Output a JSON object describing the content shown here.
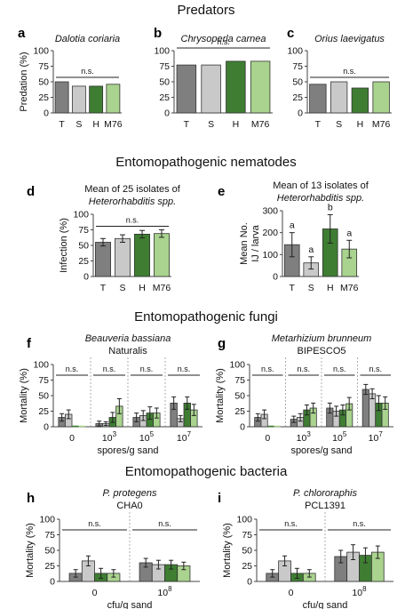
{
  "colors": {
    "T": "#7f7f7f",
    "S": "#c9c9c9",
    "H": "#3e7d32",
    "M76": "#a9d38e"
  },
  "sections": [
    "Predators",
    "Entomopathogenic nematodes",
    "Entomopathogenic fungi",
    "Entomopathogenic bacteria"
  ],
  "chart_data": [
    {
      "id": "a",
      "type": "bar",
      "title": "Dalotia coriaria",
      "title_italic": true,
      "title2": "",
      "ylabel": "Predation (%)",
      "ylim": [
        0,
        100
      ],
      "yticks": [
        0,
        25,
        50,
        75,
        100
      ],
      "categories": [
        "T",
        "S",
        "H",
        "M76"
      ],
      "values": [
        50,
        43,
        43,
        46
      ],
      "sig_label": "n.s."
    },
    {
      "id": "b",
      "type": "bar",
      "title": "Chrysoperla carnea",
      "title_italic": true,
      "title2": "",
      "ylabel": "",
      "ylim": [
        0,
        100
      ],
      "yticks": [
        0,
        25,
        50,
        75,
        100
      ],
      "categories": [
        "T",
        "S",
        "H",
        "M76"
      ],
      "values": [
        77,
        77,
        83,
        83
      ],
      "sig_label": "n.s."
    },
    {
      "id": "c",
      "type": "bar",
      "title": "Orius laevigatus",
      "title_italic": true,
      "title2": "",
      "ylabel": "",
      "ylim": [
        0,
        100
      ],
      "yticks": [
        0,
        25,
        50,
        75,
        100
      ],
      "categories": [
        "T",
        "S",
        "H",
        "M76"
      ],
      "values": [
        46,
        50,
        40,
        50
      ],
      "sig_label": "n.s."
    },
    {
      "id": "d",
      "type": "bar",
      "title": "Mean of 25 isolates of",
      "title2": "Heterorhabditis spp.",
      "title2_italic": true,
      "ylabel": "Infection (%)",
      "ylim": [
        0,
        100
      ],
      "yticks": [
        0,
        25,
        50,
        75,
        100
      ],
      "categories": [
        "T",
        "S",
        "H",
        "M76"
      ],
      "values": [
        55,
        61,
        68,
        69
      ],
      "errors": [
        6,
        6,
        6,
        6
      ],
      "sig_label": "n.s."
    },
    {
      "id": "e",
      "type": "bar",
      "title": "Mean of 13 isolates of",
      "title2": "Heterorhabditis spp.",
      "title2_italic": true,
      "ylabel": "Mean No.",
      "ylabel2": "IJ / larva",
      "ylim": [
        0,
        300
      ],
      "yticks": [
        0,
        100,
        200,
        300
      ],
      "categories": [
        "T",
        "S",
        "H",
        "M76"
      ],
      "values": [
        145,
        62,
        217,
        125
      ],
      "errors": [
        55,
        28,
        65,
        40
      ],
      "letters": [
        "a",
        "a",
        "b",
        "a"
      ]
    },
    {
      "id": "f",
      "type": "bar",
      "title": "Beauveria bassiana",
      "title_italic": true,
      "title2": "Naturalis",
      "ylabel": "Mortality (%)",
      "xlabel": "spores/g sand",
      "ylim": [
        0,
        100
      ],
      "yticks": [
        0,
        25,
        50,
        75,
        100
      ],
      "groups": [
        "0",
        "10^3",
        "10^5",
        "10^7"
      ],
      "tick_labels": [
        "0",
        "10",
        "10",
        "10"
      ],
      "tick_sups": [
        "",
        "3",
        "5",
        "7"
      ],
      "series": [
        {
          "name": "T",
          "values": [
            15,
            5,
            15,
            38
          ],
          "errors": [
            6,
            4,
            7,
            10
          ]
        },
        {
          "name": "S",
          "values": [
            20,
            5,
            18,
            13
          ],
          "errors": [
            7,
            3,
            8,
            5
          ]
        },
        {
          "name": "H",
          "values": [
            0,
            15,
            22,
            38
          ],
          "errors": [
            0,
            8,
            10,
            10
          ]
        },
        {
          "name": "M76",
          "values": [
            0,
            33,
            22,
            27
          ],
          "errors": [
            0,
            12,
            8,
            9
          ]
        }
      ],
      "sig_label": "n.s."
    },
    {
      "id": "g",
      "type": "bar",
      "title": "Metarhizium brunneum",
      "title_italic": true,
      "title2": "BIPESCO5",
      "ylabel": "Mortality (%)",
      "xlabel": "spores/g sand",
      "ylim": [
        0,
        100
      ],
      "yticks": [
        0,
        25,
        50,
        75,
        100
      ],
      "groups": [
        "0",
        "10^3",
        "10^5",
        "10^7"
      ],
      "tick_labels": [
        "0",
        "10",
        "10",
        "10"
      ],
      "tick_sups": [
        "",
        "3",
        "5",
        "7"
      ],
      "series": [
        {
          "name": "T",
          "values": [
            15,
            12,
            30,
            60
          ],
          "errors": [
            6,
            5,
            8,
            8
          ]
        },
        {
          "name": "S",
          "values": [
            20,
            15,
            25,
            53
          ],
          "errors": [
            7,
            6,
            8,
            8
          ]
        },
        {
          "name": "H",
          "values": [
            0,
            27,
            27,
            38
          ],
          "errors": [
            0,
            8,
            8,
            12
          ]
        },
        {
          "name": "M76",
          "values": [
            0,
            30,
            37,
            38
          ],
          "errors": [
            0,
            8,
            10,
            10
          ]
        }
      ],
      "sig_label": "n.s."
    },
    {
      "id": "h",
      "type": "bar",
      "title": "P. protegens",
      "title_italic": true,
      "title2": "CHA0",
      "ylabel": "Mortality (%)",
      "xlabel": "cfu/g sand",
      "ylim": [
        0,
        100
      ],
      "yticks": [
        0,
        25,
        50,
        75,
        100
      ],
      "groups": [
        "0",
        "10^8"
      ],
      "tick_labels": [
        "0",
        "10"
      ],
      "tick_sups": [
        "",
        "8"
      ],
      "series": [
        {
          "name": "T",
          "values": [
            13,
            30
          ],
          "errors": [
            6,
            7
          ]
        },
        {
          "name": "S",
          "values": [
            33,
            27
          ],
          "errors": [
            8,
            7
          ]
        },
        {
          "name": "H",
          "values": [
            13,
            27
          ],
          "errors": [
            8,
            7
          ]
        },
        {
          "name": "M76",
          "values": [
            13,
            25
          ],
          "errors": [
            6,
            6
          ]
        }
      ],
      "sig_label": "n.s."
    },
    {
      "id": "i",
      "type": "bar",
      "title": "P. chlororaphis",
      "title_italic": true,
      "title2": "PCL1391",
      "ylabel": "Mortality (%)",
      "xlabel": "cfu/g sand",
      "ylim": [
        0,
        100
      ],
      "yticks": [
        0,
        25,
        50,
        75,
        100
      ],
      "groups": [
        "0",
        "10^8"
      ],
      "tick_labels": [
        "0",
        "10"
      ],
      "tick_sups": [
        "",
        "8"
      ],
      "series": [
        {
          "name": "T",
          "values": [
            13,
            40
          ],
          "errors": [
            6,
            10
          ]
        },
        {
          "name": "S",
          "values": [
            33,
            47
          ],
          "errors": [
            8,
            12
          ]
        },
        {
          "name": "H",
          "values": [
            13,
            42
          ],
          "errors": [
            8,
            12
          ]
        },
        {
          "name": "M76",
          "values": [
            13,
            47
          ],
          "errors": [
            6,
            10
          ]
        }
      ],
      "sig_label": "n.s."
    }
  ]
}
